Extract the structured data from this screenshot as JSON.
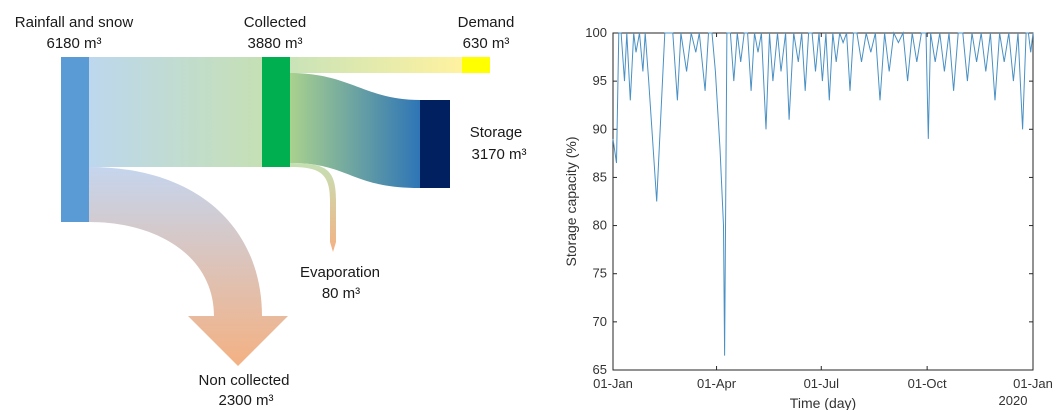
{
  "chart_data": [
    {
      "type": "sankey",
      "nodes": [
        {
          "id": "rainfall",
          "label": "Rainfall and snow",
          "value_label": "6180 m³",
          "value": 6180,
          "color": "#5b9bd5"
        },
        {
          "id": "collected",
          "label": "Collected",
          "value_label": "3880 m³",
          "value": 3880,
          "color": "#00b050"
        },
        {
          "id": "demand",
          "label": "Demand",
          "value_label": "630 m³",
          "value": 630,
          "color": "#ffff00"
        },
        {
          "id": "storage",
          "label": "Storage",
          "value_label": "3170 m³",
          "value": 3170,
          "color": "#002060"
        },
        {
          "id": "evaporation",
          "label": "Evaporation",
          "value_label": "80 m³",
          "value": 80,
          "color": "#f4b183"
        },
        {
          "id": "non_collected",
          "label": "Non collected",
          "value_label": "2300 m³",
          "value": 2300,
          "color": "#f4b183"
        }
      ],
      "links": [
        {
          "source": "rainfall",
          "target": "collected",
          "value": 3880
        },
        {
          "source": "rainfall",
          "target": "non_collected",
          "value": 2300
        },
        {
          "source": "collected",
          "target": "demand",
          "value": 630
        },
        {
          "source": "collected",
          "target": "storage",
          "value": 3170
        },
        {
          "source": "collected",
          "target": "evaporation",
          "value": 80
        }
      ]
    },
    {
      "type": "line",
      "xlabel": "Time (day)",
      "ylabel": "Storage capacity (%)",
      "ylim": [
        65,
        100
      ],
      "yticks": [
        65,
        70,
        75,
        80,
        85,
        90,
        95,
        100
      ],
      "xlim": [
        "2019-01-01",
        "2020-01-01"
      ],
      "xticks": [
        {
          "date": "2019-01-01",
          "label": "01-Jan"
        },
        {
          "date": "2019-04-01",
          "label": "01-Apr"
        },
        {
          "date": "2019-07-01",
          "label": "01-Jul"
        },
        {
          "date": "2019-10-01",
          "label": "01-Oct"
        },
        {
          "date": "2020-01-01",
          "label": "01-Jan"
        }
      ],
      "xaxis_secondary_label": "2020",
      "series_color": "#4a90c4",
      "series": [
        {
          "x": [
            "2019-01-01",
            "2019-01-04",
            "2019-01-06",
            "2019-01-08",
            "2019-01-11",
            "2019-01-13",
            "2019-01-16",
            "2019-01-19",
            "2019-01-21",
            "2019-01-24",
            "2019-01-27",
            "2019-01-29",
            "2019-02-01",
            "2019-02-08",
            "2019-02-15",
            "2019-02-22",
            "2019-02-26",
            "2019-03-01",
            "2019-03-06",
            "2019-03-10",
            "2019-03-14",
            "2019-03-17",
            "2019-03-22",
            "2019-03-25",
            "2019-03-28",
            "2019-03-31",
            "2019-04-04",
            "2019-04-07",
            "2019-04-08",
            "2019-04-10",
            "2019-04-13",
            "2019-04-16",
            "2019-04-19",
            "2019-04-22",
            "2019-04-25",
            "2019-04-28",
            "2019-05-01",
            "2019-05-04",
            "2019-05-07",
            "2019-05-10",
            "2019-05-14",
            "2019-05-17",
            "2019-05-20",
            "2019-05-24",
            "2019-05-27",
            "2019-05-31",
            "2019-06-03",
            "2019-06-07",
            "2019-06-11",
            "2019-06-14",
            "2019-06-17",
            "2019-06-20",
            "2019-06-23",
            "2019-06-26",
            "2019-06-29",
            "2019-07-02",
            "2019-07-05",
            "2019-07-08",
            "2019-07-11",
            "2019-07-14",
            "2019-07-17",
            "2019-07-20",
            "2019-07-23",
            "2019-07-26",
            "2019-07-29",
            "2019-08-01",
            "2019-08-05",
            "2019-08-09",
            "2019-08-13",
            "2019-08-17",
            "2019-08-21",
            "2019-08-25",
            "2019-08-29",
            "2019-09-02",
            "2019-09-06",
            "2019-09-10",
            "2019-09-14",
            "2019-09-18",
            "2019-09-22",
            "2019-09-26",
            "2019-09-30",
            "2019-10-02",
            "2019-10-04",
            "2019-10-08",
            "2019-10-12",
            "2019-10-16",
            "2019-10-20",
            "2019-10-24",
            "2019-10-28",
            "2019-11-01",
            "2019-11-05",
            "2019-11-09",
            "2019-11-13",
            "2019-11-17",
            "2019-11-21",
            "2019-11-25",
            "2019-11-29",
            "2019-12-03",
            "2019-12-07",
            "2019-12-11",
            "2019-12-15",
            "2019-12-19",
            "2019-12-23",
            "2019-12-26",
            "2019-12-28",
            "2019-12-30",
            "2020-01-01"
          ],
          "y": [
            89,
            86.5,
            100,
            100,
            95,
            100,
            93,
            100,
            98,
            100,
            96,
            100,
            95,
            82.5,
            100,
            100,
            93,
            100,
            96,
            100,
            98,
            100,
            94,
            100,
            100,
            96,
            88,
            80,
            66.5,
            100,
            100,
            95,
            100,
            97,
            100,
            100,
            94,
            100,
            98,
            100,
            90,
            100,
            95,
            100,
            96,
            100,
            91,
            100,
            97,
            100,
            94,
            100,
            100,
            96,
            100,
            95,
            100,
            93,
            100,
            97,
            100,
            99,
            100,
            94,
            100,
            100,
            97,
            100,
            98,
            100,
            93,
            100,
            96,
            100,
            99,
            100,
            95,
            100,
            97,
            100,
            100,
            89,
            100,
            97,
            100,
            96,
            100,
            94,
            100,
            100,
            95,
            100,
            97,
            100,
            96,
            100,
            93,
            100,
            97,
            100,
            95,
            100,
            90,
            100,
            100,
            98,
            100
          ]
        }
      ]
    }
  ]
}
